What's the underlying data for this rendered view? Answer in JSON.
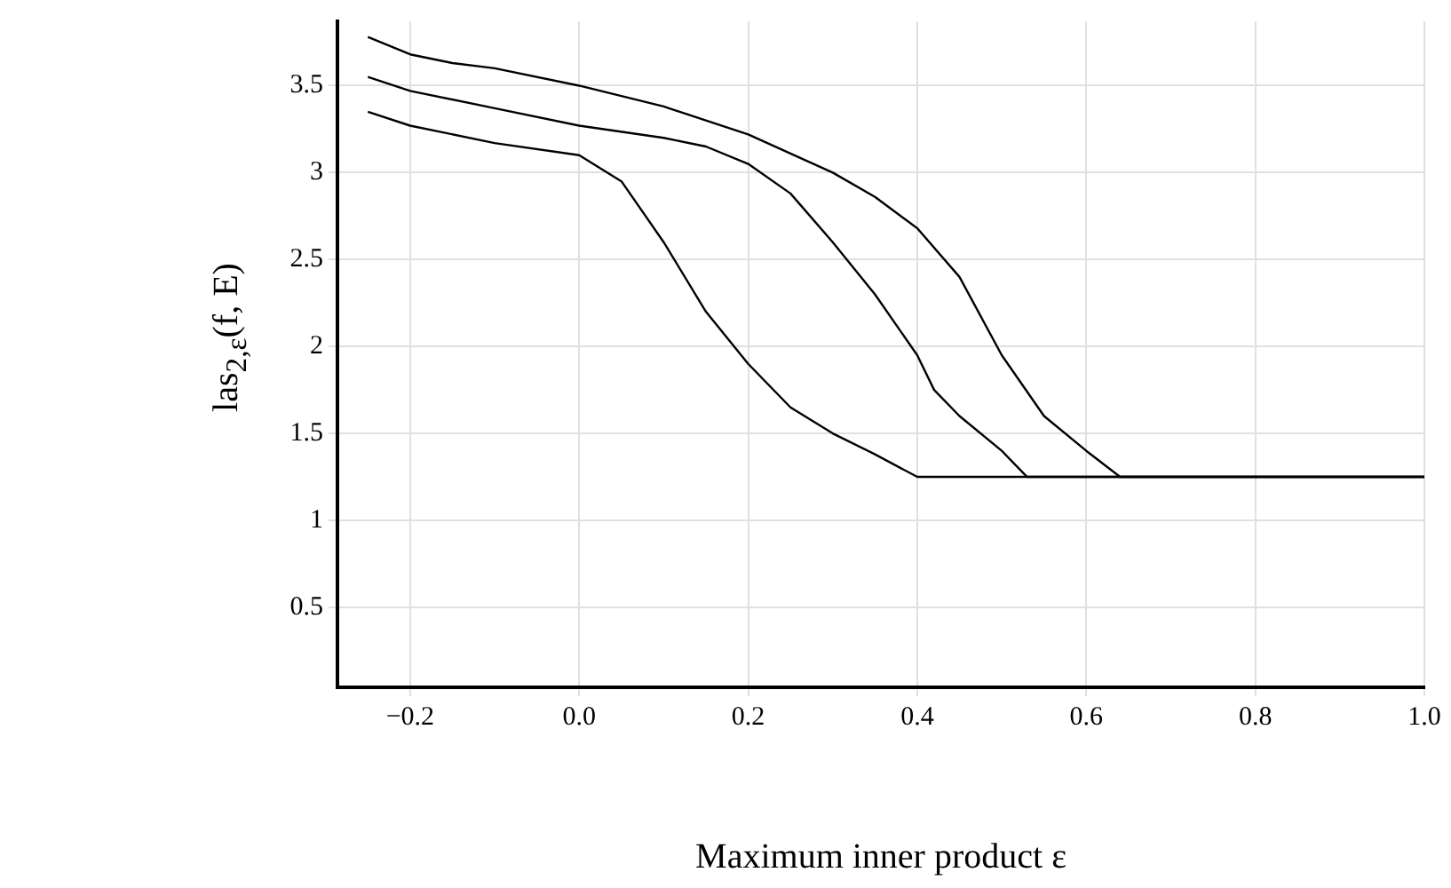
{
  "chart_data": {
    "type": "line",
    "xlabel": "Maximum inner product ε",
    "ylabel": "las$_{2,ε}$(f, E)",
    "xlim": [
      -0.286,
      1.0
    ],
    "ylim": [
      0.04,
      3.87
    ],
    "xticks": [
      {
        "value": -0.2,
        "label": "−0.2"
      },
      {
        "value": 0,
        "label": "0.0"
      },
      {
        "value": 0.2,
        "label": "0.2"
      },
      {
        "value": 0.4,
        "label": "0.4"
      },
      {
        "value": 0.6,
        "label": "0.6"
      },
      {
        "value": 0.8,
        "label": "0.8"
      },
      {
        "value": 1,
        "label": "1.0"
      }
    ],
    "yticks": [
      0.5,
      1,
      1.5,
      2,
      2.5,
      3,
      3.5
    ],
    "grid": true,
    "legend": false,
    "marker": "none",
    "line_style": "solid",
    "series": [
      {
        "color": "#000000",
        "x": [
          -0.25,
          -0.2,
          -0.1,
          0,
          0.05,
          0.1,
          0.15,
          0.2,
          0.25,
          0.3,
          0.35,
          0.4,
          1.0
        ],
        "values": [
          3.35,
          3.27,
          3.17,
          3.1,
          2.95,
          2.6,
          2.2,
          1.9,
          1.65,
          1.5,
          1.38,
          1.25,
          1.25
        ]
      },
      {
        "color": "#000000",
        "x": [
          -0.25,
          -0.2,
          -0.1,
          0,
          0.1,
          0.15,
          0.2,
          0.25,
          0.3,
          0.35,
          0.4,
          0.42,
          0.45,
          0.5,
          0.53,
          1.0
        ],
        "values": [
          3.55,
          3.47,
          3.37,
          3.27,
          3.2,
          3.15,
          3.05,
          2.88,
          2.6,
          2.3,
          1.95,
          1.75,
          1.6,
          1.4,
          1.25,
          1.25
        ]
      },
      {
        "color": "#000000",
        "x": [
          -0.25,
          -0.2,
          -0.15,
          -0.1,
          0,
          0.1,
          0.2,
          0.3,
          0.35,
          0.4,
          0.45,
          0.5,
          0.55,
          0.6,
          0.64,
          1.0
        ],
        "values": [
          3.78,
          3.68,
          3.63,
          3.6,
          3.5,
          3.38,
          3.22,
          3.0,
          2.86,
          2.68,
          2.4,
          1.95,
          1.6,
          1.4,
          1.25,
          1.25
        ]
      }
    ]
  }
}
